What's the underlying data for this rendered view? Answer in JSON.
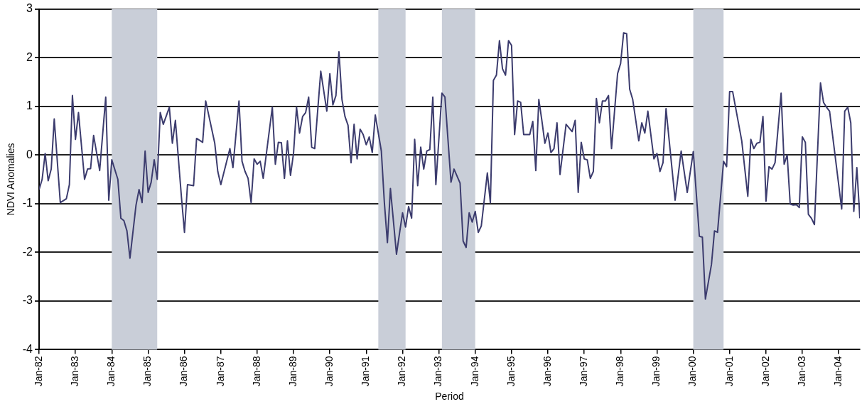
{
  "chart_data": {
    "type": "line",
    "xlabel": "Period",
    "ylabel": "NDVI Anomalies",
    "xlim": [
      "1982-01",
      "2004-08"
    ],
    "xticks": [
      {
        "value": "1982-01",
        "label": "Jan-82"
      },
      {
        "value": "1983-01",
        "label": "Jan-83"
      },
      {
        "value": "1984-01",
        "label": "Jan-84"
      },
      {
        "value": "1985-01",
        "label": "Jan-85"
      },
      {
        "value": "1986-01",
        "label": "Jan-86"
      },
      {
        "value": "1987-01",
        "label": "Jan-87"
      },
      {
        "value": "1988-01",
        "label": "Jan-88"
      },
      {
        "value": "1989-01",
        "label": "Jan-89"
      },
      {
        "value": "1990-01",
        "label": "Jan-90"
      },
      {
        "value": "1991-01",
        "label": "Jan-91"
      },
      {
        "value": "1992-01",
        "label": "Jan-92"
      },
      {
        "value": "1993-01",
        "label": "Jan-93"
      },
      {
        "value": "1994-01",
        "label": "Jan-94"
      },
      {
        "value": "1995-01",
        "label": "Jan-95"
      },
      {
        "value": "1996-01",
        "label": "Jan-96"
      },
      {
        "value": "1997-01",
        "label": "Jan-97"
      },
      {
        "value": "1998-01",
        "label": "Jan-98"
      },
      {
        "value": "1999-01",
        "label": "Jan-99"
      },
      {
        "value": "2000-01",
        "label": "Jan-00"
      },
      {
        "value": "2001-01",
        "label": "Jan-01"
      },
      {
        "value": "2002-01",
        "label": "Jan-02"
      },
      {
        "value": "2003-01",
        "label": "Jan-03"
      },
      {
        "value": "2004-01",
        "label": "Jan-04"
      }
    ],
    "ylim": [
      -4,
      3
    ],
    "yticks": [
      -4,
      -3,
      -2,
      -1,
      0,
      1,
      2,
      3
    ],
    "grid": "y",
    "legend": false,
    "marker": "none",
    "line_style": "solid",
    "bands": [
      {
        "axis": "x",
        "from": "1984-01",
        "to": "1985-04",
        "color": "#c9ced8"
      },
      {
        "axis": "x",
        "from": "1991-05",
        "to": "1992-02",
        "color": "#c9ced8"
      },
      {
        "axis": "x",
        "from": "1993-02",
        "to": "1994-01",
        "color": "#c9ced8"
      },
      {
        "axis": "x",
        "from": "2000-01",
        "to": "2000-11",
        "color": "#c9ced8"
      }
    ],
    "x": [
      "1982-01",
      "1982-02",
      "1982-03",
      "1982-04",
      "1982-05",
      "1982-06",
      "1982-08",
      "1982-10",
      "1982-11",
      "1982-12",
      "1983-01",
      "1983-02",
      "1983-04",
      "1983-05",
      "1983-06",
      "1983-07",
      "1983-09",
      "1983-11",
      "1983-12",
      "1984-01",
      "1984-03",
      "1984-04",
      "1984-05",
      "1984-06",
      "1984-07",
      "1984-09",
      "1984-10",
      "1984-11",
      "1984-12",
      "1985-01",
      "1985-02",
      "1985-03",
      "1985-04",
      "1985-05",
      "1985-06",
      "1985-08",
      "1985-09",
      "1985-10",
      "1985-12",
      "1986-01",
      "1986-02",
      "1986-04",
      "1986-05",
      "1986-07",
      "1986-08",
      "1986-11",
      "1986-12",
      "1987-01",
      "1987-04",
      "1987-05",
      "1987-07",
      "1987-08",
      "1987-09",
      "1987-10",
      "1987-11",
      "1987-12",
      "1988-01",
      "1988-02",
      "1988-03",
      "1988-06",
      "1988-07",
      "1988-08",
      "1988-09",
      "1988-10",
      "1988-11",
      "1988-12",
      "1989-01",
      "1989-02",
      "1989-03",
      "1989-04",
      "1989-05",
      "1989-06",
      "1989-07",
      "1989-08",
      "1989-10",
      "1989-12",
      "1990-01",
      "1990-02",
      "1990-03",
      "1990-04",
      "1990-05",
      "1990-06",
      "1990-07",
      "1990-08",
      "1990-09",
      "1990-10",
      "1990-11",
      "1990-12",
      "1991-01",
      "1991-02",
      "1991-03",
      "1991-04",
      "1991-06",
      "1991-07",
      "1991-08",
      "1991-09",
      "1991-11",
      "1991-12",
      "1992-01",
      "1992-02",
      "1992-03",
      "1992-04",
      "1992-05",
      "1992-06",
      "1992-07",
      "1992-08",
      "1992-09",
      "1992-10",
      "1992-11",
      "1992-12",
      "1993-02",
      "1993-03",
      "1993-05",
      "1993-06",
      "1993-08",
      "1993-09",
      "1993-10",
      "1993-11",
      "1993-12",
      "1994-01",
      "1994-02",
      "1994-03",
      "1994-05",
      "1994-06",
      "1994-07",
      "1994-08",
      "1994-09",
      "1994-10",
      "1994-11",
      "1994-12",
      "1995-01",
      "1995-02",
      "1995-03",
      "1995-04",
      "1995-05",
      "1995-07",
      "1995-08",
      "1995-09",
      "1995-10",
      "1995-11",
      "1995-12",
      "1996-01",
      "1996-02",
      "1996-03",
      "1996-04",
      "1996-05",
      "1996-07",
      "1996-09",
      "1996-10",
      "1996-11",
      "1996-12",
      "1997-01",
      "1997-02",
      "1997-03",
      "1997-04",
      "1997-05",
      "1997-06",
      "1997-07",
      "1997-08",
      "1997-09",
      "1997-10",
      "1997-12",
      "1998-01",
      "1998-02",
      "1998-03",
      "1998-04",
      "1998-05",
      "1998-07",
      "1998-08",
      "1998-09",
      "1998-10",
      "1998-12",
      "1999-01",
      "1999-02",
      "1999-03",
      "1999-04",
      "1999-07",
      "1999-09",
      "1999-11",
      "2000-01",
      "2000-03",
      "2000-04",
      "2000-05",
      "2000-07",
      "2000-08",
      "2000-09",
      "2000-11",
      "2000-12",
      "2001-01",
      "2001-02",
      "2001-05",
      "2001-07",
      "2001-08",
      "2001-09",
      "2001-10",
      "2001-11",
      "2001-12",
      "2002-01",
      "2002-02",
      "2002-03",
      "2002-04",
      "2002-06",
      "2002-07",
      "2002-08",
      "2002-09",
      "2002-10",
      "2002-11",
      "2002-12",
      "2003-01",
      "2003-02",
      "2003-03",
      "2003-04",
      "2003-05",
      "2003-07",
      "2003-08",
      "2003-09",
      "2003-10",
      "2003-11",
      "2004-02",
      "2004-03",
      "2004-04",
      "2004-05",
      "2004-06",
      "2004-07",
      "2004-08"
    ],
    "series": [
      {
        "color": "#3c3c6e",
        "values": [
          -0.71,
          -0.5,
          0.03,
          -0.53,
          -0.29,
          0.74,
          -0.98,
          -0.9,
          -0.61,
          1.22,
          0.32,
          0.87,
          -0.5,
          -0.29,
          -0.28,
          0.4,
          -0.32,
          1.19,
          -0.93,
          -0.1,
          -0.5,
          -1.3,
          -1.35,
          -1.56,
          -2.12,
          -1.03,
          -0.71,
          -0.98,
          0.08,
          -0.77,
          -0.56,
          -0.1,
          -0.5,
          0.87,
          0.63,
          0.98,
          0.24,
          0.71,
          -0.87,
          -1.59,
          -0.61,
          -0.63,
          0.34,
          0.26,
          1.11,
          0.24,
          -0.34,
          -0.61,
          0.13,
          -0.26,
          1.11,
          -0.13,
          -0.34,
          -0.48,
          -0.98,
          -0.08,
          -0.19,
          -0.13,
          -0.48,
          0.98,
          -0.19,
          0.26,
          0.25,
          -0.48,
          0.29,
          -0.42,
          0.03,
          0.98,
          0.45,
          0.79,
          0.87,
          1.19,
          0.16,
          0.13,
          1.72,
          0.9,
          1.67,
          1.03,
          1.22,
          2.12,
          1.14,
          0.79,
          0.61,
          -0.16,
          0.63,
          -0.08,
          0.53,
          0.42,
          0.21,
          0.37,
          0.05,
          0.82,
          0.08,
          -0.98,
          -1.8,
          -0.69,
          -2.04,
          -1.61,
          -1.19,
          -1.48,
          -1.06,
          -1.3,
          0.32,
          -0.63,
          0.16,
          -0.29,
          0.08,
          0.11,
          1.19,
          -0.61,
          1.27,
          1.19,
          -0.56,
          -0.29,
          -0.58,
          -1.77,
          -1.9,
          -1.19,
          -1.38,
          -1.16,
          -1.59,
          -1.46,
          -0.37,
          -0.98,
          1.53,
          1.64,
          2.35,
          1.77,
          1.64,
          2.35,
          2.25,
          0.42,
          1.11,
          1.08,
          0.42,
          0.42,
          0.69,
          -0.32,
          1.14,
          0.71,
          0.24,
          0.45,
          0.05,
          0.13,
          0.66,
          -0.4,
          0.63,
          0.48,
          0.71,
          -0.77,
          0.26,
          -0.08,
          -0.1,
          -0.48,
          -0.34,
          1.16,
          0.66,
          1.11,
          1.11,
          1.22,
          0.13,
          1.67,
          1.88,
          2.51,
          2.49,
          1.35,
          1.14,
          0.29,
          0.66,
          0.45,
          0.9,
          -0.08,
          0.03,
          -0.34,
          -0.16,
          0.95,
          -0.93,
          0.08,
          -0.77,
          0.07,
          -1.67,
          -1.69,
          -2.96,
          -2.25,
          -1.56,
          -1.59,
          -0.13,
          -0.24,
          1.3,
          1.3,
          0.29,
          -0.85,
          0.32,
          0.13,
          0.24,
          0.26,
          0.79,
          -0.95,
          -0.24,
          -0.29,
          -0.16,
          1.27,
          -0.19,
          0,
          -1.01,
          -1.03,
          -1.02,
          -1.08,
          0.37,
          0.26,
          -1.22,
          -1.3,
          -1.43,
          1.48,
          1.08,
          0.98,
          0.9,
          0.4,
          -1.11,
          0.9,
          0.98,
          0.66,
          -1.16,
          -0.26,
          -1.3
        ]
      }
    ]
  }
}
